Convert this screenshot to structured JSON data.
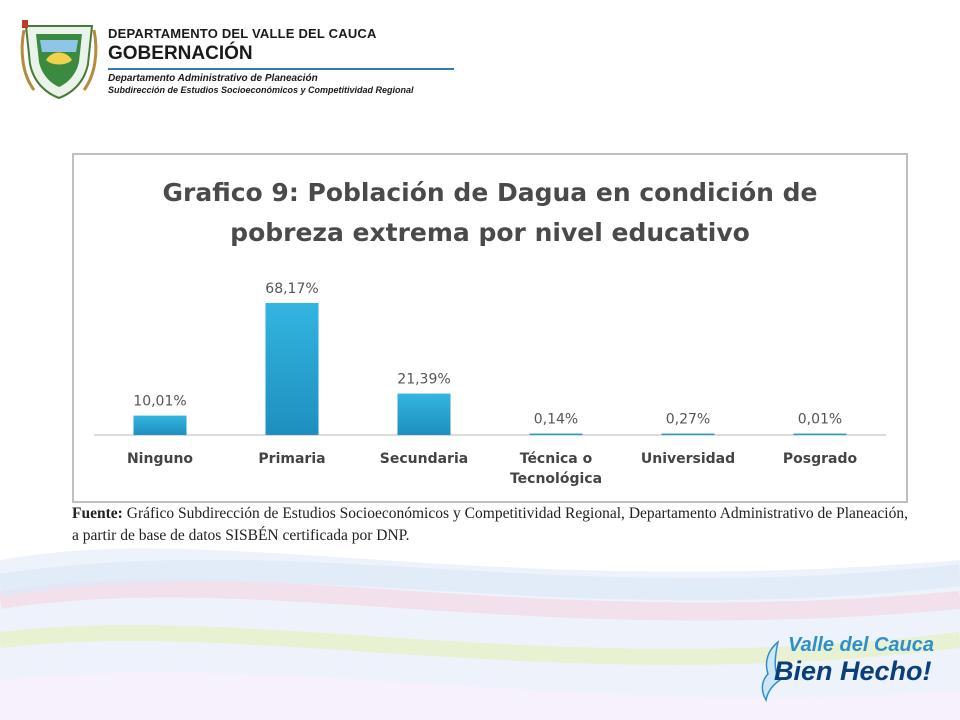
{
  "header": {
    "line1": "DEPARTAMENTO DEL VALLE DEL CAUCA",
    "line2": "GOBERNACIÓN",
    "line3": "Departamento  Administrativo de Planeación",
    "line4": "Subdirección de Estudios Socioeconómicos y Competitividad Regional",
    "crest_icon": "department-coat-of-arms"
  },
  "chart_data": {
    "type": "bar",
    "title_line1": "Grafico 9: Población de Dagua en condición de",
    "title_line2": "pobreza extrema por nivel educativo",
    "categories": [
      "Ninguno",
      "Primaria",
      "Secundaria",
      "Técnica o Tecnológica",
      "Universidad",
      "Posgrado"
    ],
    "category_lines": [
      [
        "Ninguno"
      ],
      [
        "Primaria"
      ],
      [
        "Secundaria"
      ],
      [
        "Técnica o",
        "Tecnológica"
      ],
      [
        "Universidad"
      ],
      [
        "Posgrado"
      ]
    ],
    "values": [
      10.01,
      68.17,
      21.39,
      0.14,
      0.27,
      0.01
    ],
    "labels": [
      "10,01%",
      "68,17%",
      "21,39%",
      "0,14%",
      "0,27%",
      "0,01%"
    ],
    "ylim": [
      0,
      68.17
    ],
    "grid": false,
    "legend": "none",
    "bar_color": "#33b5e0",
    "bar_color_dark": "#1e8fbf"
  },
  "source": {
    "label": "Fuente:",
    "text": " Gráfico Subdirección de Estudios Socioeconómicos y Competitividad Regional, Departamento Administrativo de Planeación, a partir de base de datos SISBÉN certificada por DNP."
  },
  "footer": {
    "line1": "Valle del Cauca",
    "line2": "Bien Hecho!",
    "mark_icon": "dove-silhouette-icon"
  }
}
